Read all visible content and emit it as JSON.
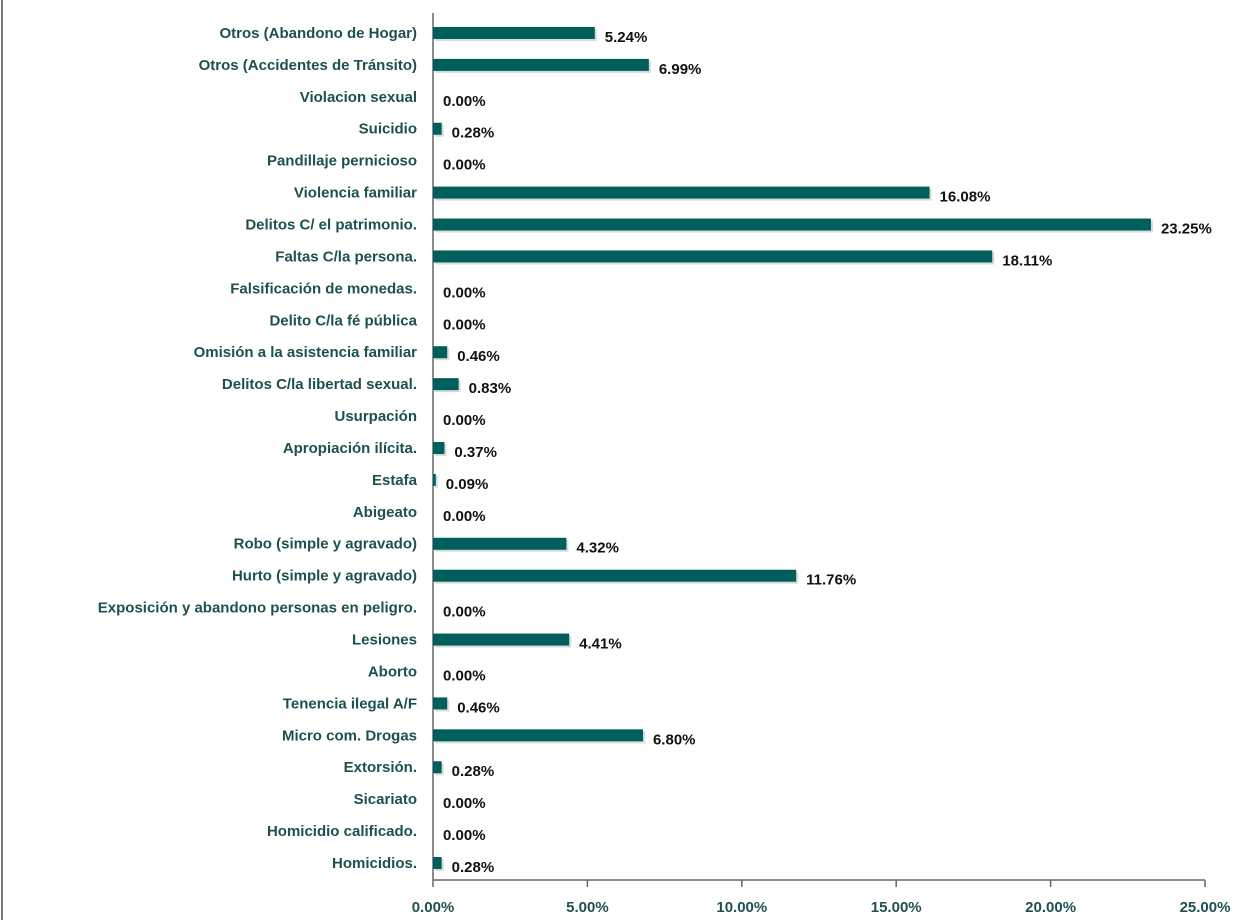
{
  "chart_data": {
    "type": "hbar",
    "categories": [
      "Otros (Abandono de Hogar)",
      "Otros (Accidentes de Tránsito)",
      "Violacion sexual",
      "Suicidio",
      "Pandillaje pernicioso",
      "Violencia familiar",
      "Delitos C/ el patrimonio.",
      "Faltas C/la persona.",
      "Falsificación de monedas.",
      "Delito C/la fé pública",
      "Omisión a la asistencia familiar",
      "Delitos C/la libertad sexual.",
      "Usurpación",
      "Apropiación ilícita.",
      "Estafa",
      "Abigeato",
      "Robo (simple y agravado)",
      "Hurto (simple y agravado)",
      "Exposición y abandono personas en peligro.",
      "Lesiones",
      "Aborto",
      "Tenencia ilegal A/F",
      "Micro com. Drogas",
      "Extorsión.",
      "Sicariato",
      "Homicidio calificado.",
      "Homicidios."
    ],
    "values": [
      5.24,
      6.99,
      0,
      0.28,
      0,
      16.08,
      23.25,
      18.11,
      0,
      0,
      0.46,
      0.83,
      0,
      0.37,
      0.09,
      0,
      4.32,
      11.76,
      0,
      4.41,
      0,
      0.46,
      6.8,
      0.28,
      0,
      0,
      0.28
    ],
    "value_labels": [
      "5.24%",
      "6.99%",
      "0.00%",
      "0.28%",
      "0.00%",
      "16.08%",
      "23.25%",
      "18.11%",
      "0.00%",
      "0.00%",
      "0.46%",
      "0.83%",
      "0.00%",
      "0.37%",
      "0.09%",
      "0.00%",
      "4.32%",
      "11.76%",
      "0.00%",
      "4.41%",
      "0.00%",
      "0.46%",
      "6.80%",
      "0.28%",
      "0.00%",
      "0.00%",
      "0.28%"
    ],
    "color": "#005f5a",
    "xlim": [
      0,
      25
    ],
    "xticks": [
      {
        "value": 0,
        "label": "0.00%"
      },
      {
        "value": 5,
        "label": "5.00%"
      },
      {
        "value": 10,
        "label": "10.00%"
      },
      {
        "value": 15,
        "label": "15.00%"
      },
      {
        "value": 20,
        "label": "20.00%"
      },
      {
        "value": 25,
        "label": "25.00%"
      }
    ]
  }
}
